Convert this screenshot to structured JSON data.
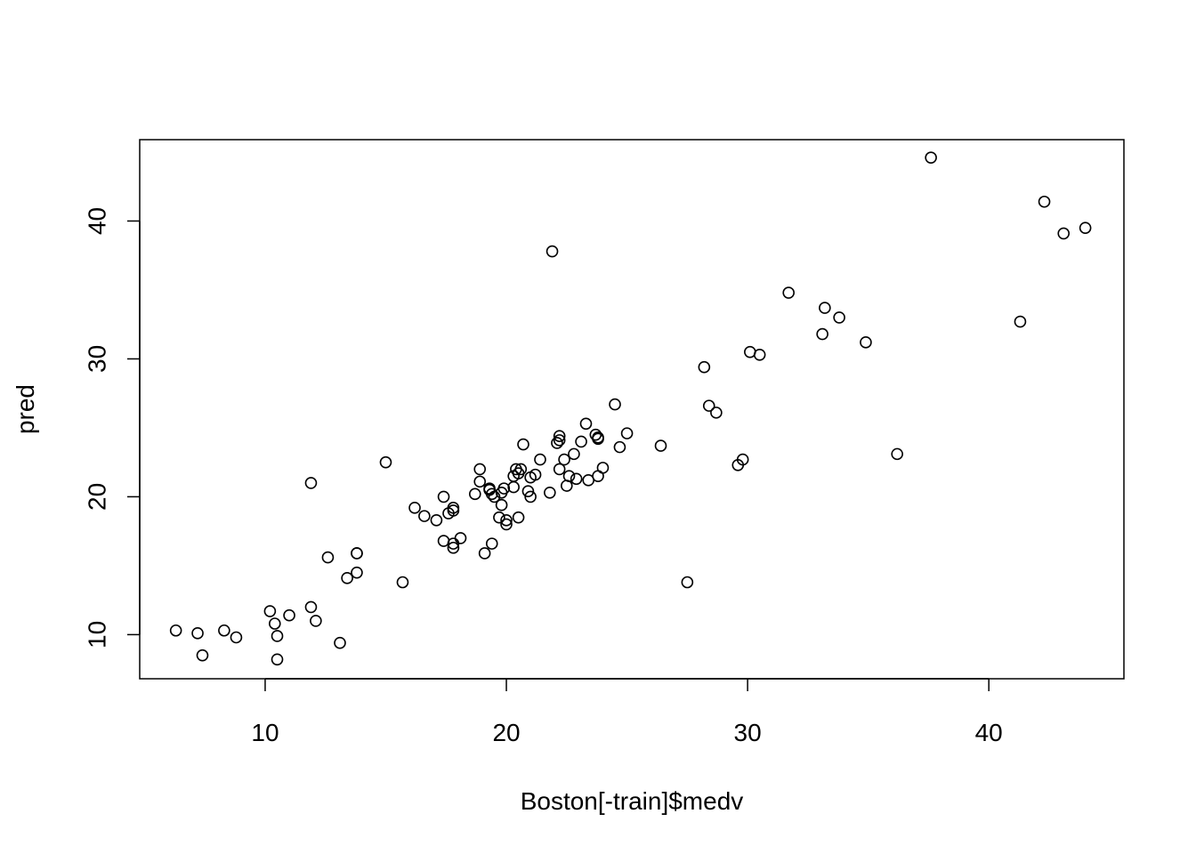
{
  "chart_data": {
    "type": "scatter",
    "title": "",
    "xlabel": "Boston[-train]$medv",
    "ylabel": "pred",
    "xlim": [
      4.8,
      45.6
    ],
    "ylim": [
      6.8,
      45.9
    ],
    "xticks": [
      10,
      20,
      30,
      40
    ],
    "yticks": [
      10,
      20,
      30,
      40
    ],
    "grid": false,
    "marker": "open-circle",
    "points": [
      [
        6.3,
        10.3
      ],
      [
        7.2,
        10.1
      ],
      [
        7.4,
        8.5
      ],
      [
        8.3,
        10.3
      ],
      [
        8.8,
        9.8
      ],
      [
        10.2,
        11.7
      ],
      [
        10.4,
        10.8
      ],
      [
        10.5,
        8.2
      ],
      [
        10.5,
        9.9
      ],
      [
        11.0,
        11.4
      ],
      [
        11.9,
        12.0
      ],
      [
        12.1,
        11.0
      ],
      [
        11.9,
        21.0
      ],
      [
        12.6,
        15.6
      ],
      [
        13.1,
        9.4
      ],
      [
        13.4,
        14.1
      ],
      [
        13.8,
        14.5
      ],
      [
        13.8,
        15.9
      ],
      [
        13.8,
        15.9
      ],
      [
        15.0,
        22.5
      ],
      [
        15.7,
        13.8
      ],
      [
        16.2,
        19.2
      ],
      [
        16.6,
        18.6
      ],
      [
        17.1,
        18.3
      ],
      [
        17.4,
        20.0
      ],
      [
        17.4,
        16.8
      ],
      [
        17.6,
        18.8
      ],
      [
        17.8,
        19.0
      ],
      [
        17.8,
        19.2
      ],
      [
        17.8,
        16.6
      ],
      [
        17.8,
        16.3
      ],
      [
        18.1,
        17.0
      ],
      [
        18.7,
        20.2
      ],
      [
        18.9,
        22.0
      ],
      [
        18.9,
        21.1
      ],
      [
        19.1,
        15.9
      ],
      [
        19.3,
        20.5
      ],
      [
        19.3,
        20.6
      ],
      [
        19.4,
        20.2
      ],
      [
        19.4,
        16.6
      ],
      [
        19.5,
        20.0
      ],
      [
        19.7,
        18.5
      ],
      [
        19.8,
        19.4
      ],
      [
        19.8,
        20.3
      ],
      [
        19.9,
        20.6
      ],
      [
        20.0,
        18.0
      ],
      [
        20.0,
        18.3
      ],
      [
        20.3,
        21.5
      ],
      [
        20.3,
        20.7
      ],
      [
        20.4,
        22.0
      ],
      [
        20.5,
        21.7
      ],
      [
        20.5,
        18.5
      ],
      [
        20.6,
        22.0
      ],
      [
        20.7,
        23.8
      ],
      [
        20.9,
        20.4
      ],
      [
        21.0,
        21.4
      ],
      [
        21.0,
        20.0
      ],
      [
        21.2,
        21.6
      ],
      [
        21.4,
        22.7
      ],
      [
        21.8,
        20.3
      ],
      [
        21.9,
        37.8
      ],
      [
        22.1,
        23.9
      ],
      [
        22.2,
        24.1
      ],
      [
        22.2,
        24.4
      ],
      [
        22.2,
        22.0
      ],
      [
        22.4,
        22.7
      ],
      [
        22.5,
        20.8
      ],
      [
        22.6,
        21.5
      ],
      [
        22.8,
        23.1
      ],
      [
        22.9,
        21.3
      ],
      [
        23.1,
        24.0
      ],
      [
        23.3,
        25.3
      ],
      [
        23.4,
        21.2
      ],
      [
        23.7,
        24.5
      ],
      [
        23.8,
        24.2
      ],
      [
        23.8,
        24.3
      ],
      [
        23.8,
        21.5
      ],
      [
        24.0,
        22.1
      ],
      [
        24.5,
        26.7
      ],
      [
        24.7,
        23.6
      ],
      [
        25.0,
        24.6
      ],
      [
        26.4,
        23.7
      ],
      [
        27.5,
        13.8
      ],
      [
        28.2,
        29.4
      ],
      [
        28.4,
        26.6
      ],
      [
        28.7,
        26.1
      ],
      [
        29.6,
        22.3
      ],
      [
        29.8,
        22.7
      ],
      [
        30.1,
        30.5
      ],
      [
        30.5,
        30.3
      ],
      [
        31.7,
        34.8
      ],
      [
        33.1,
        31.8
      ],
      [
        33.2,
        33.7
      ],
      [
        33.8,
        33.0
      ],
      [
        34.9,
        31.2
      ],
      [
        36.2,
        23.1
      ],
      [
        37.6,
        44.6
      ],
      [
        41.3,
        32.7
      ],
      [
        42.3,
        41.4
      ],
      [
        43.1,
        39.1
      ],
      [
        44.0,
        39.5
      ]
    ]
  }
}
